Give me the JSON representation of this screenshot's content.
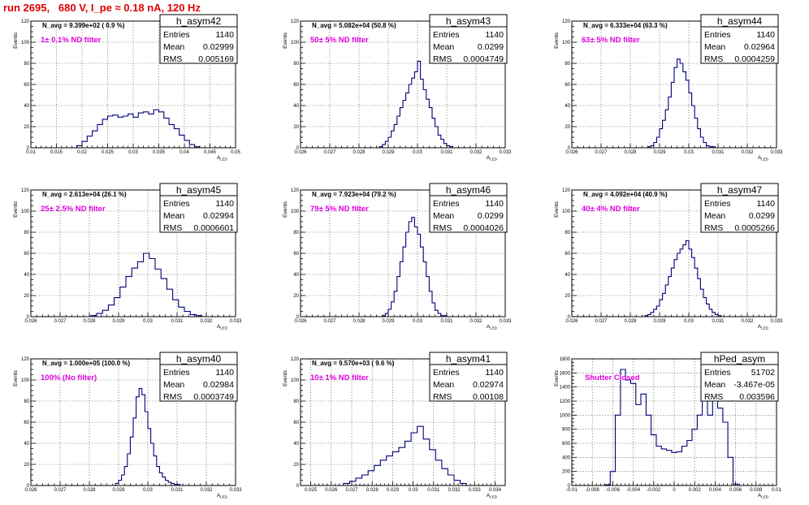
{
  "header": {
    "title": "run 2695,   680 V, I_pe ≈ 0.18 nA, 120 Hz"
  },
  "colors": {
    "title": "#e00000",
    "histogram": "#00007a",
    "annotation": "#e000e0"
  },
  "chart_data": [
    {
      "type": "histogram",
      "name": "h_asym42",
      "ylabel": "Events",
      "xlabel": "A_LED",
      "xlim": [
        0.01,
        0.05
      ],
      "ylim": [
        0,
        120
      ],
      "xticks": [
        0.01,
        0.015,
        0.02,
        0.025,
        0.03,
        0.035,
        0.04,
        0.045,
        0.05
      ],
      "xticklabels": [
        "0.01",
        "0.015",
        "0.02",
        "0.025",
        "0.03",
        "0.035",
        "0.04",
        "0.045",
        "0.05"
      ],
      "yticks": [
        0,
        20,
        40,
        60,
        80,
        100,
        120
      ],
      "stats": {
        "Entries": "1140",
        "Mean": "0.02999",
        "RMS": "0.005169"
      },
      "navg": "N_avg = 9.399e+02 ( 0.9 %)",
      "filter": "1± 0.1% ND filter",
      "x": [
        0.0195,
        0.0205,
        0.0215,
        0.0225,
        0.0235,
        0.0245,
        0.0255,
        0.0265,
        0.0275,
        0.0285,
        0.0295,
        0.0305,
        0.0315,
        0.0325,
        0.0335,
        0.0345,
        0.0355,
        0.0365,
        0.0375,
        0.0385,
        0.0395,
        0.0405,
        0.0415,
        0.0425
      ],
      "y": [
        2,
        6,
        11,
        16,
        22,
        27,
        30,
        31,
        29,
        30,
        32,
        29,
        33,
        34,
        32,
        36,
        34,
        28,
        22,
        18,
        12,
        7,
        3,
        1
      ]
    },
    {
      "type": "histogram",
      "name": "h_asym43",
      "ylabel": "Events",
      "xlabel": "A_LED",
      "xlim": [
        0.026,
        0.033
      ],
      "ylim": [
        0,
        120
      ],
      "xticks": [
        0.026,
        0.027,
        0.028,
        0.029,
        0.03,
        0.031,
        0.032,
        0.033
      ],
      "xticklabels": [
        "0.026",
        "0.027",
        "0.028",
        "0.029",
        "0.03",
        "0.031",
        "0.032",
        "0.033"
      ],
      "yticks": [
        0,
        20,
        40,
        60,
        80,
        100,
        120
      ],
      "stats": {
        "Entries": "1140",
        "Mean": "0.0299",
        "RMS": "0.0004749"
      },
      "navg": "N_avg = 5.082e+04 (50.8 %)",
      "filter": "50± 5% ND filter",
      "x": [
        0.02875,
        0.02885,
        0.02895,
        0.02905,
        0.02915,
        0.02925,
        0.02935,
        0.02945,
        0.02955,
        0.02965,
        0.02975,
        0.02985,
        0.02995,
        0.03005,
        0.03015,
        0.03025,
        0.03035,
        0.03045,
        0.03055,
        0.03065,
        0.03075,
        0.03085,
        0.03095,
        0.03105,
        0.03115
      ],
      "y": [
        1,
        3,
        6,
        10,
        16,
        22,
        30,
        38,
        45,
        52,
        60,
        66,
        72,
        82,
        65,
        55,
        46,
        38,
        28,
        20,
        12,
        8,
        4,
        2,
        1
      ]
    },
    {
      "type": "histogram",
      "name": "h_asym44",
      "ylabel": "Events",
      "xlabel": "A_LED",
      "xlim": [
        0.026,
        0.033
      ],
      "ylim": [
        0,
        120
      ],
      "xticks": [
        0.026,
        0.027,
        0.028,
        0.029,
        0.03,
        0.031,
        0.032,
        0.033
      ],
      "xticklabels": [
        "0.026",
        "0.027",
        "0.028",
        "0.029",
        "0.03",
        "0.031",
        "0.032",
        "0.033"
      ],
      "yticks": [
        0,
        20,
        40,
        60,
        80,
        100,
        120
      ],
      "stats": {
        "Entries": "1140",
        "Mean": "0.02964",
        "RMS": "0.0004259"
      },
      "navg": "N_avg = 6.333e+04 (63.3 %)",
      "filter": "63± 5% ND filter",
      "x": [
        0.02865,
        0.02875,
        0.02885,
        0.02895,
        0.02905,
        0.02915,
        0.02925,
        0.02935,
        0.02945,
        0.02955,
        0.02965,
        0.02975,
        0.02985,
        0.02995,
        0.03005,
        0.03015,
        0.03025,
        0.03035,
        0.03045,
        0.03055,
        0.03065,
        0.03075,
        0.03085
      ],
      "y": [
        1,
        2,
        5,
        10,
        18,
        26,
        36,
        48,
        62,
        76,
        84,
        80,
        72,
        64,
        52,
        40,
        28,
        18,
        10,
        5,
        2,
        1,
        1
      ]
    },
    {
      "type": "histogram",
      "name": "h_asym45",
      "ylabel": "Events",
      "xlabel": "A_LED",
      "xlim": [
        0.026,
        0.033
      ],
      "ylim": [
        0,
        120
      ],
      "xticks": [
        0.026,
        0.027,
        0.028,
        0.029,
        0.03,
        0.031,
        0.032,
        0.033
      ],
      "xticklabels": [
        "0.026",
        "0.027",
        "0.028",
        "0.029",
        "0.03",
        "0.031",
        "0.032",
        "0.033"
      ],
      "yticks": [
        0,
        20,
        40,
        60,
        80,
        100,
        120
      ],
      "stats": {
        "Entries": "1140",
        "Mean": "0.02994",
        "RMS": "0.0006601"
      },
      "navg": "N_avg = 2.613e+04 (26.1 %)",
      "filter": "25± 2.5% ND filter",
      "x": [
        0.02815,
        0.02835,
        0.02855,
        0.02875,
        0.02895,
        0.02915,
        0.02935,
        0.02955,
        0.02975,
        0.02995,
        0.03015,
        0.03035,
        0.03055,
        0.03075,
        0.03095,
        0.03115,
        0.03135,
        0.03155,
        0.03175
      ],
      "y": [
        1,
        3,
        6,
        11,
        18,
        28,
        38,
        46,
        52,
        60,
        55,
        45,
        36,
        26,
        16,
        9,
        5,
        2,
        1
      ]
    },
    {
      "type": "histogram",
      "name": "h_asym46",
      "ylabel": "Events",
      "xlabel": "A_LED",
      "xlim": [
        0.026,
        0.033
      ],
      "ylim": [
        0,
        120
      ],
      "xticks": [
        0.026,
        0.027,
        0.028,
        0.029,
        0.03,
        0.031,
        0.032,
        0.033
      ],
      "xticklabels": [
        "0.026",
        "0.027",
        "0.028",
        "0.029",
        "0.03",
        "0.031",
        "0.032",
        "0.033"
      ],
      "yticks": [
        0,
        20,
        40,
        60,
        80,
        100,
        120
      ],
      "stats": {
        "Entries": "1140",
        "Mean": "0.0299",
        "RMS": "0.0004026"
      },
      "navg": "N_avg = 7.923e+04 (79.2 %)",
      "filter": "79± 5% ND filter",
      "x": [
        0.02885,
        0.02895,
        0.02905,
        0.02915,
        0.02925,
        0.02935,
        0.02945,
        0.02955,
        0.02965,
        0.02975,
        0.02985,
        0.02995,
        0.03005,
        0.03015,
        0.03025,
        0.03035,
        0.03045,
        0.03055,
        0.03065,
        0.03075,
        0.03085,
        0.03095
      ],
      "y": [
        1,
        3,
        7,
        14,
        24,
        38,
        52,
        66,
        80,
        90,
        94,
        85,
        78,
        66,
        52,
        38,
        24,
        13,
        6,
        3,
        1,
        1
      ]
    },
    {
      "type": "histogram",
      "name": "h_asym47",
      "ylabel": "Events",
      "xlabel": "A_LED",
      "xlim": [
        0.026,
        0.033
      ],
      "ylim": [
        0,
        120
      ],
      "xticks": [
        0.026,
        0.027,
        0.028,
        0.029,
        0.03,
        0.031,
        0.032,
        0.033
      ],
      "xticklabels": [
        "0.026",
        "0.027",
        "0.028",
        "0.029",
        "0.03",
        "0.031",
        "0.032",
        "0.033"
      ],
      "yticks": [
        0,
        20,
        40,
        60,
        80,
        100,
        120
      ],
      "stats": {
        "Entries": "1140",
        "Mean": "0.0299",
        "RMS": "0.0005266"
      },
      "navg": "N_avg = 4.092e+04 (40.9 %)",
      "filter": "40± 4% ND filter",
      "x": [
        0.02855,
        0.02865,
        0.02875,
        0.02885,
        0.02895,
        0.02905,
        0.02915,
        0.02925,
        0.02935,
        0.02945,
        0.02955,
        0.02965,
        0.02975,
        0.02985,
        0.02995,
        0.03005,
        0.03015,
        0.03025,
        0.03035,
        0.03045,
        0.03055,
        0.03065,
        0.03075,
        0.03085,
        0.03095,
        0.03105
      ],
      "y": [
        1,
        2,
        4,
        7,
        10,
        16,
        22,
        30,
        38,
        46,
        54,
        60,
        64,
        68,
        72,
        64,
        56,
        46,
        36,
        26,
        18,
        12,
        7,
        4,
        2,
        1
      ]
    },
    {
      "type": "histogram",
      "name": "h_asym40",
      "ylabel": "Events",
      "xlabel": "A_LED",
      "xlim": [
        0.026,
        0.033
      ],
      "ylim": [
        0,
        120
      ],
      "xticks": [
        0.026,
        0.027,
        0.028,
        0.029,
        0.03,
        0.031,
        0.032,
        0.033
      ],
      "xticklabels": [
        "0.026",
        "0.027",
        "0.028",
        "0.029",
        "0.03",
        "0.031",
        "0.032",
        "0.033"
      ],
      "yticks": [
        0,
        20,
        40,
        60,
        80,
        100,
        120
      ],
      "stats": {
        "Entries": "1140",
        "Mean": "0.02984",
        "RMS": "0.0003749"
      },
      "navg": "N_avg = 1.000e+05 (100.0 %)",
      "filter": "100% (No filter)",
      "x": [
        0.02895,
        0.02905,
        0.02915,
        0.02925,
        0.02935,
        0.02945,
        0.02955,
        0.02965,
        0.02975,
        0.02985,
        0.02995,
        0.03005,
        0.03015,
        0.03025,
        0.03035,
        0.03045,
        0.03055,
        0.03065,
        0.03075,
        0.03085,
        0.03095,
        0.03105
      ],
      "y": [
        2,
        5,
        10,
        18,
        30,
        46,
        64,
        84,
        92,
        86,
        70,
        54,
        40,
        28,
        18,
        12,
        8,
        5,
        3,
        2,
        1,
        1
      ]
    },
    {
      "type": "histogram",
      "name": "h_asym41",
      "ylabel": "Events",
      "xlabel": "A_LED",
      "xlim": [
        0.0245,
        0.0345
      ],
      "ylim": [
        0,
        120
      ],
      "xticks": [
        0.025,
        0.026,
        0.027,
        0.028,
        0.029,
        0.03,
        0.031,
        0.032,
        0.033,
        0.034
      ],
      "xticklabels": [
        "0.025",
        "0.026",
        "0.027",
        "0.028",
        "0.029",
        "0.03",
        "0.031",
        "0.032",
        "0.033",
        "0.034"
      ],
      "yticks": [
        0,
        20,
        40,
        60,
        80,
        100,
        120
      ],
      "stats": {
        "Entries": "1140",
        "Mean": "0.02974",
        "RMS": "0.00108"
      },
      "navg": "N_avg = 9.570e+03 ( 9.6 %)",
      "filter": "10± 1% ND filter",
      "x": [
        0.02675,
        0.02705,
        0.02735,
        0.02765,
        0.02795,
        0.02825,
        0.02855,
        0.02885,
        0.02915,
        0.02945,
        0.02975,
        0.03005,
        0.03035,
        0.03065,
        0.03095,
        0.03125,
        0.03155,
        0.03185,
        0.03215,
        0.03245
      ],
      "y": [
        2,
        4,
        7,
        10,
        14,
        19,
        24,
        28,
        32,
        36,
        42,
        50,
        56,
        44,
        34,
        24,
        16,
        10,
        5,
        2
      ]
    },
    {
      "type": "histogram",
      "name": "hPed_asym",
      "ylabel": "Events",
      "xlabel": "A_LED",
      "xlim": [
        -0.01,
        0.01
      ],
      "ylim": [
        0,
        1800
      ],
      "xticks": [
        -0.01,
        -0.008,
        -0.006,
        -0.004,
        -0.002,
        0,
        0.002,
        0.004,
        0.006,
        0.008,
        0.01
      ],
      "xticklabels": [
        "-0.01",
        "-0.008",
        "-0.006",
        "-0.004",
        "-0.002",
        "0",
        "0.002",
        "0.004",
        "0.006",
        "0.008",
        "0.01"
      ],
      "yticks": [
        0,
        200,
        400,
        600,
        800,
        1000,
        1200,
        1400,
        1600,
        1800
      ],
      "stats": {
        "Entries": "51702",
        "Mean": "-3.467e-05",
        "RMS": "0.003596"
      },
      "navg": "",
      "filter": "Shutter Closed",
      "x": [
        -0.0065,
        -0.006,
        -0.0055,
        -0.005,
        -0.0045,
        -0.004,
        -0.0035,
        -0.003,
        -0.0025,
        -0.002,
        -0.0015,
        -0.001,
        -0.0005,
        0.0,
        0.0005,
        0.001,
        0.0015,
        0.002,
        0.0025,
        0.003,
        0.0035,
        0.004,
        0.0045,
        0.005,
        0.0055,
        0.006
      ],
      "y": [
        10,
        200,
        1000,
        1650,
        1500,
        1450,
        1150,
        1300,
        1000,
        720,
        560,
        520,
        500,
        470,
        480,
        560,
        640,
        800,
        1000,
        1250,
        1000,
        1300,
        1100,
        900,
        400,
        20
      ]
    }
  ]
}
